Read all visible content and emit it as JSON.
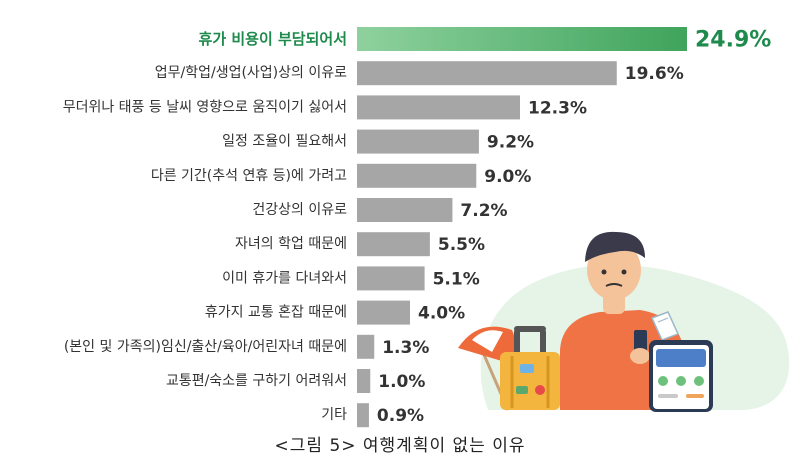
{
  "caption": "<그림 5>   여행계획이 없는 이유",
  "colors": {
    "highlight_bar": "#5cb872",
    "highlight_text": "#1e8a4c",
    "bar": "#a6a6a6",
    "text": "#333333"
  },
  "chart_data": {
    "type": "bar",
    "orientation": "horizontal",
    "title": "",
    "categories": [
      "휴가 비용이 부담되어서",
      "업무/학업/생업(사업)상의 이유로",
      "무더위나 태풍 등 날씨 영향으로 움직이기 싫어서",
      "일정 조율이 필요해서",
      "다른 기간(추석 연휴 등)에 가려고",
      "건강상의 이유로",
      "자녀의 학업 때문에",
      "이미 휴가를 다녀와서",
      "휴가지 교통 혼잡 때문에",
      "(본인 및 가족의)임신/출산/육아/어린자녀 때문에",
      "교통편/숙소를 구하기 어려워서",
      "기타"
    ],
    "values": [
      24.9,
      19.6,
      12.3,
      9.2,
      9.0,
      7.2,
      5.5,
      5.1,
      4.0,
      1.3,
      1.0,
      0.9
    ],
    "value_labels": [
      "24.9%",
      "19.6%",
      "12.3%",
      "9.2%",
      "9.0%",
      "7.2%",
      "5.5%",
      "5.1%",
      "4.0%",
      "1.3%",
      "1.0%",
      "0.9%"
    ],
    "highlight_index": 0,
    "xlim": [
      0,
      24.9
    ],
    "grid": false,
    "legend": "none"
  }
}
